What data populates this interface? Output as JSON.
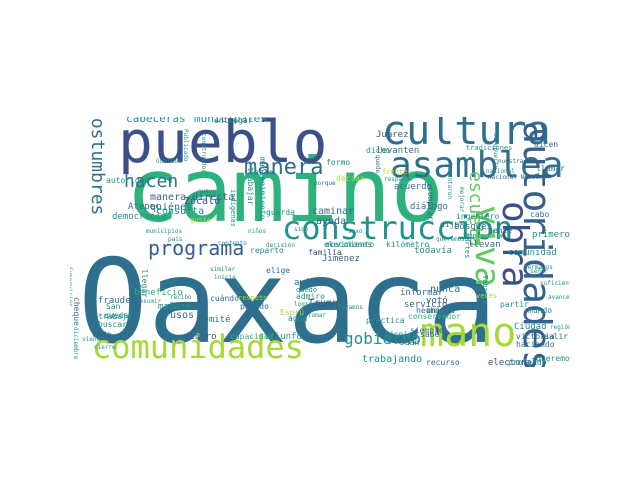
{
  "palette": {
    "dark_navy": "#3b4f8a",
    "slate_blue": "#355f8d",
    "teal_blue": "#2f6f8e",
    "teal": "#21918c",
    "green_teal": "#2db27d",
    "green": "#5ec962",
    "lime": "#a6d936",
    "yellow": "#dde318",
    "purple": "#482475"
  },
  "words": [
    {
      "text": "Oaxaca",
      "c": "teal_blue"
    },
    {
      "text": "camino",
      "c": "green_teal"
    },
    {
      "text": "pueblo",
      "c": "dark_navy"
    },
    {
      "text": "cultura",
      "c": "teal_blue"
    },
    {
      "text": "asamblea",
      "c": "teal_blue"
    },
    {
      "text": "autoridades",
      "c": "slate_blue"
    },
    {
      "text": "comunidades",
      "c": "lime"
    },
    {
      "text": "construcción",
      "c": "teal"
    },
    {
      "text": "mano",
      "c": "lime"
    },
    {
      "text": "obra",
      "c": "dark_navy"
    },
    {
      "text": "viva",
      "c": "green"
    },
    {
      "text": "manera",
      "c": "teal_blue"
    },
    {
      "text": "programa",
      "c": "slate_blue"
    },
    {
      "text": "costumbres",
      "c": "teal_blue"
    },
    {
      "text": "escuela",
      "c": "green"
    },
    {
      "text": "gobierno",
      "c": "teal"
    },
    {
      "text": "hacen",
      "c": "teal_blue"
    },
    {
      "text": "cabeceras",
      "c": "teal"
    },
    {
      "text": "municipales",
      "c": "teal"
    },
    {
      "text": "presupuesto",
      "c": "slate_blue"
    },
    {
      "text": "compromiso",
      "c": "lime"
    },
    {
      "text": "trabajadores",
      "c": "green_teal"
    },
    {
      "text": "tiempo",
      "c": "teal"
    },
    {
      "text": "manera directa",
      "c": "slate_blue"
    },
    {
      "text": "consulta",
      "c": "teal"
    },
    {
      "text": "ayuda",
      "c": "slate_blue"
    },
    {
      "text": "elecciones",
      "c": "teal"
    },
    {
      "text": "caminar",
      "c": "teal_blue"
    },
    {
      "text": "familia",
      "c": "slate_blue"
    },
    {
      "text": "comunidad",
      "c": "teal"
    },
    {
      "text": "primero",
      "c": "teal"
    },
    {
      "text": "nunca",
      "c": "teal_blue"
    },
    {
      "text": "votó",
      "c": "slate_blue"
    },
    {
      "text": "trabajando",
      "c": "teal"
    },
    {
      "text": "Ciudad",
      "c": "teal"
    },
    {
      "text": "victoria",
      "c": "teal_blue"
    },
    {
      "text": "haciendo",
      "c": "teal_blue"
    },
    {
      "text": "electoral",
      "c": "dark_navy"
    },
    {
      "text": "recurso",
      "c": "teal_blue"
    },
    {
      "text": "profundo",
      "c": "teal"
    },
    {
      "text": "triunfo",
      "c": "teal"
    },
    {
      "text": "dinero",
      "c": "slate_blue"
    },
    {
      "text": "usos",
      "c": "teal_blue"
    },
    {
      "text": "mañana",
      "c": "teal"
    },
    {
      "text": "comité",
      "c": "teal_blue"
    },
    {
      "text": "beneficio",
      "c": "green_teal"
    },
    {
      "text": "Atepec",
      "c": "teal_blue"
    },
    {
      "text": "Zócalo",
      "c": "dark_navy"
    },
    {
      "text": "quiénes",
      "c": "teal_blue"
    },
    {
      "text": "democracia",
      "c": "teal"
    },
    {
      "text": "fraude",
      "c": "teal_blue"
    },
    {
      "text": "trabajo",
      "c": "teal"
    },
    {
      "text": "buscar",
      "c": "teal"
    },
    {
      "text": "cada",
      "c": "slate_blue"
    },
    {
      "text": "San",
      "c": "teal"
    },
    {
      "text": "cheque",
      "c": "teal_blue"
    },
    {
      "text": "quedar",
      "c": "teal"
    },
    {
      "text": "capacidad",
      "c": "green_teal"
    },
    {
      "text": "pasado",
      "c": "teal_blue"
    },
    {
      "text": "elige",
      "c": "teal_blue"
    },
    {
      "text": "avión",
      "c": "teal_blue"
    },
    {
      "text": "admiro",
      "c": "teal"
    },
    {
      "text": "Trump",
      "c": "slate_blue"
    },
    {
      "text": "Jiménez",
      "c": "slate_blue"
    },
    {
      "text": "kilómetro",
      "c": "teal"
    },
    {
      "text": "movimiento",
      "c": "teal"
    },
    {
      "text": "todavía",
      "c": "teal"
    },
    {
      "text": "llevan",
      "c": "teal_blue"
    },
    {
      "text": "informar",
      "c": "teal_blue"
    },
    {
      "text": "servicio",
      "c": "slate_blue"
    },
    {
      "text": "siempre",
      "c": "teal_blue"
    },
    {
      "text": "hecho",
      "c": "teal_blue"
    },
    {
      "text": "conservador",
      "c": "green_teal"
    },
    {
      "text": "práctica",
      "c": "teal"
    },
    {
      "text": "técnica",
      "c": "teal"
    },
    {
      "text": "Juárez",
      "c": "slate_blue"
    },
    {
      "text": "levanten",
      "c": "teal_blue"
    },
    {
      "text": "llamar",
      "c": "teal_blue"
    },
    {
      "text": "dicen",
      "c": "teal_blue"
    },
    {
      "text": "acuerdo",
      "c": "teal_blue"
    },
    {
      "text": "diálogo",
      "c": "teal_blue"
    },
    {
      "text": "ingeniero",
      "c": "teal"
    },
    {
      "text": "comprar",
      "c": "teal_blue"
    },
    {
      "text": "bosques",
      "c": "teal_blue"
    },
    {
      "text": "cabo",
      "c": "teal_blue"
    },
    {
      "text": "Juan",
      "c": "teal_blue"
    },
    {
      "text": "sabe",
      "c": "teal_blue"
    },
    {
      "text": "mundo",
      "c": "teal"
    },
    {
      "text": "salir",
      "c": "teal_blue"
    },
    {
      "text": "queremos",
      "c": "teal"
    },
    {
      "text": "entregar",
      "c": "teal_blue"
    },
    {
      "text": "dicho",
      "c": "teal"
    },
    {
      "text": "formo",
      "c": "teal"
    },
    {
      "text": "decían",
      "c": "lime"
    },
    {
      "text": "aula",
      "c": "teal"
    },
    {
      "text": "autoridad",
      "c": "teal"
    },
    {
      "text": "guarda",
      "c": "teal"
    },
    {
      "text": "dije",
      "c": "teal_blue"
    },
    {
      "text": "gente",
      "c": "teal_blue"
    },
    {
      "text": "partir",
      "c": "teal"
    },
    {
      "text": "unidad",
      "c": "slate_blue"
    },
    {
      "text": "Esprú",
      "c": "lime"
    },
    {
      "text": "cuándo",
      "c": "teal_blue"
    },
    {
      "text": "agua",
      "c": "teal"
    },
    {
      "text": "mantenimiento",
      "c": "teal"
    },
    {
      "text": "trabajar",
      "c": "teal"
    },
    {
      "text": "reparto",
      "c": "teal"
    },
    {
      "text": "llegar",
      "c": "teal"
    },
    {
      "text": "amigos",
      "c": "teal"
    },
    {
      "text": "tradiciones",
      "c": "teal"
    },
    {
      "text": "nuestra",
      "c": "teal_blue"
    },
    {
      "text": "Guardia",
      "c": "teal"
    },
    {
      "text": "municipios",
      "c": "teal"
    },
    {
      "text": "país",
      "c": "teal"
    },
    {
      "text": "nuevo",
      "c": "teal_blue"
    },
    {
      "text": "empleo",
      "c": "teal"
    },
    {
      "text": "frentes",
      "c": "lime"
    },
    {
      "text": "diciembre",
      "c": "teal"
    },
    {
      "text": "resumir",
      "c": "teal"
    },
    {
      "text": "viene",
      "c": "teal"
    },
    {
      "text": "Publicado",
      "c": "teal"
    },
    {
      "text": "construidos",
      "c": "teal"
    },
    {
      "text": "región",
      "c": "teal"
    },
    {
      "text": "avances",
      "c": "teal"
    },
    {
      "text": "cierre",
      "c": "teal"
    },
    {
      "text": "sido",
      "c": "teal"
    },
    {
      "text": "quedó",
      "c": "teal"
    },
    {
      "text": "logro",
      "c": "teal"
    },
    {
      "text": "tomar",
      "c": "teal"
    },
    {
      "text": "nacional",
      "c": "teal"
    },
    {
      "text": "contento",
      "c": "teal"
    },
    {
      "text": "hermanos",
      "c": "teal"
    },
    {
      "text": "Tabasco",
      "c": "teal"
    },
    {
      "text": "veces",
      "c": "lime"
    },
    {
      "text": "partes",
      "c": "teal"
    },
    {
      "text": "similar",
      "c": "teal"
    },
    {
      "text": "inicia",
      "c": "teal"
    },
    {
      "text": "suficiente",
      "c": "teal"
    },
    {
      "text": "señor",
      "c": "teal"
    },
    {
      "text": "indígenas",
      "c": "teal"
    },
    {
      "text": "guste",
      "c": "lime"
    },
    {
      "text": "respeto",
      "c": "lime"
    },
    {
      "text": "Supervisión",
      "c": "teal"
    },
    {
      "text": "porque",
      "c": "teal_blue"
    },
    {
      "text": "queremos",
      "c": "teal"
    },
    {
      "text": "aeropuerto",
      "c": "teal"
    },
    {
      "text": "niños",
      "c": "teal"
    },
    {
      "text": "quede",
      "c": "teal_blue"
    },
    {
      "text": "levantaron",
      "c": "teal"
    },
    {
      "text": "mejorar",
      "c": "teal"
    },
    {
      "text": "sexo",
      "c": "teal"
    },
    {
      "text": "decisión",
      "c": "teal"
    },
    {
      "text": "Nacional Nuestra",
      "c": "teal_blue"
    },
    {
      "text": "Llevamos",
      "c": "teal"
    },
    {
      "text": "respaldo",
      "c": "teal"
    },
    {
      "text": "recibo",
      "c": "teal"
    }
  ]
}
